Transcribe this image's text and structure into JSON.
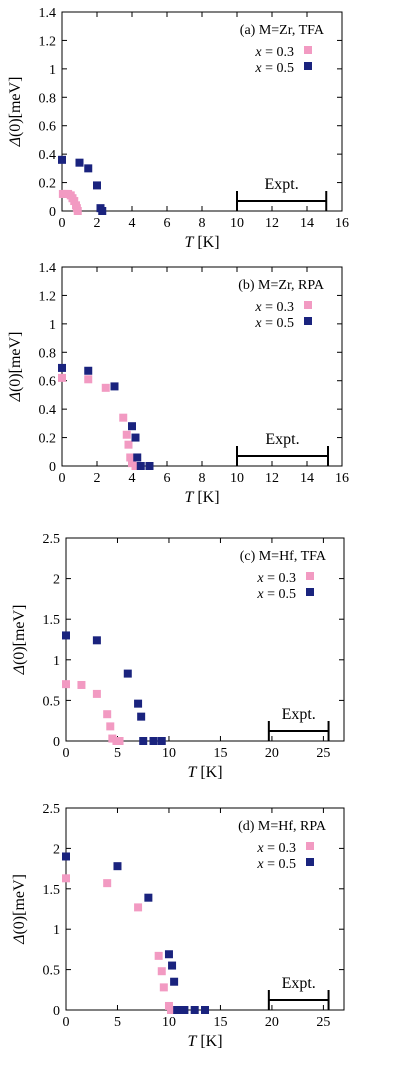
{
  "colors": {
    "x03": "#f29ac2",
    "x05": "#1a237e"
  },
  "chart_data": [
    {
      "type": "scatter",
      "title": "(a) M=Zr, TFA",
      "xlabel": "T [K]",
      "ylabel": "Δ(0)[meV]",
      "xlim": [
        0,
        16
      ],
      "ylim": [
        0,
        1.4
      ],
      "xticks": [
        0,
        2,
        4,
        6,
        8,
        10,
        12,
        14,
        16
      ],
      "yticks": [
        0,
        0.2,
        0.4,
        0.6,
        0.8,
        1,
        1.2,
        1.4
      ],
      "xtick_labels": [
        "0",
        "2",
        "4",
        "6",
        "8",
        "10",
        "12",
        "14",
        "16"
      ],
      "ytick_labels": [
        "0",
        "0.2",
        "0.4",
        "0.6",
        "0.8",
        "1",
        "1.2",
        "1.4"
      ],
      "legend_position": "top-right",
      "expt": {
        "label": "Expt.",
        "range": [
          10,
          15.1
        ]
      },
      "series": [
        {
          "name": "x = 0.3",
          "color": "#f29ac2",
          "points": [
            [
              0.05,
              0.12
            ],
            [
              0.2,
              0.12
            ],
            [
              0.35,
              0.12
            ],
            [
              0.5,
              0.11
            ],
            [
              0.6,
              0.09
            ],
            [
              0.7,
              0.07
            ],
            [
              0.8,
              0.04
            ],
            [
              0.85,
              0.02
            ],
            [
              0.9,
              0.0
            ]
          ]
        },
        {
          "name": "x = 0.5",
          "color": "#1a237e",
          "points": [
            [
              0,
              0.36
            ],
            [
              1,
              0.34
            ],
            [
              1.5,
              0.3
            ],
            [
              2,
              0.18
            ],
            [
              2.2,
              0.02
            ],
            [
              2.3,
              0.0
            ]
          ]
        }
      ]
    },
    {
      "type": "scatter",
      "title": "(b) M=Zr, RPA",
      "xlabel": "T [K]",
      "ylabel": "Δ(0)[meV]",
      "xlim": [
        0,
        16
      ],
      "ylim": [
        0,
        1.4
      ],
      "xticks": [
        0,
        2,
        4,
        6,
        8,
        10,
        12,
        14,
        16
      ],
      "yticks": [
        0,
        0.2,
        0.4,
        0.6,
        0.8,
        1,
        1.2,
        1.4
      ],
      "xtick_labels": [
        "0",
        "2",
        "4",
        "6",
        "8",
        "10",
        "12",
        "14",
        "16"
      ],
      "ytick_labels": [
        "0",
        "0.2",
        "0.4",
        "0.6",
        "0.8",
        "1",
        "1.2",
        "1.4"
      ],
      "legend_position": "top-right",
      "expt": {
        "label": "Expt.",
        "range": [
          10,
          15.2
        ]
      },
      "series": [
        {
          "name": "x = 0.3",
          "color": "#f29ac2",
          "points": [
            [
              0,
              0.62
            ],
            [
              1.5,
              0.61
            ],
            [
              2.5,
              0.55
            ],
            [
              3.5,
              0.34
            ],
            [
              3.7,
              0.22
            ],
            [
              3.8,
              0.15
            ],
            [
              3.9,
              0.06
            ],
            [
              4.0,
              0.02
            ],
            [
              4.2,
              0.0
            ]
          ]
        },
        {
          "name": "x = 0.5",
          "color": "#1a237e",
          "points": [
            [
              0,
              0.69
            ],
            [
              1.5,
              0.67
            ],
            [
              3,
              0.56
            ],
            [
              4,
              0.28
            ],
            [
              4.2,
              0.2
            ],
            [
              4.3,
              0.06
            ],
            [
              4.5,
              0.0
            ],
            [
              5,
              0.0
            ]
          ]
        }
      ]
    },
    {
      "type": "scatter",
      "title": "(c) M=Hf, TFA",
      "xlabel": "T [K]",
      "ylabel": "Δ(0)[meV]",
      "xlim": [
        0,
        27
      ],
      "ylim": [
        0,
        2.5
      ],
      "xticks": [
        0,
        5,
        10,
        15,
        20,
        25
      ],
      "yticks": [
        0,
        0.5,
        1,
        1.5,
        2,
        2.5
      ],
      "xtick_labels": [
        "0",
        "5",
        "10",
        "15",
        "20",
        "25"
      ],
      "ytick_labels": [
        "0",
        "0.5",
        "1",
        "1.5",
        "2",
        "2.5"
      ],
      "legend_position": "top-right",
      "expt": {
        "label": "Expt.",
        "range": [
          19.7,
          25.5
        ]
      },
      "series": [
        {
          "name": "x = 0.3",
          "color": "#f29ac2",
          "points": [
            [
              0,
              0.7
            ],
            [
              1.5,
              0.69
            ],
            [
              3,
              0.58
            ],
            [
              4,
              0.33
            ],
            [
              4.3,
              0.18
            ],
            [
              4.5,
              0.03
            ],
            [
              4.9,
              0.0
            ],
            [
              5.2,
              0.0
            ]
          ]
        },
        {
          "name": "x = 0.5",
          "color": "#1a237e",
          "points": [
            [
              0,
              1.3
            ],
            [
              3,
              1.24
            ],
            [
              6,
              0.83
            ],
            [
              7,
              0.46
            ],
            [
              7.3,
              0.3
            ],
            [
              7.5,
              0.0
            ],
            [
              8.5,
              0.0
            ],
            [
              9.3,
              0.0
            ]
          ]
        }
      ]
    },
    {
      "type": "scatter",
      "title": "(d) M=Hf, RPA",
      "xlabel": "T [K]",
      "ylabel": "Δ(0)[meV]",
      "xlim": [
        0,
        27
      ],
      "ylim": [
        0,
        2.5
      ],
      "xticks": [
        0,
        5,
        10,
        15,
        20,
        25
      ],
      "yticks": [
        0,
        0.5,
        1,
        1.5,
        2,
        2.5
      ],
      "xtick_labels": [
        "0",
        "5",
        "10",
        "15",
        "20",
        "25"
      ],
      "ytick_labels": [
        "0",
        "0.5",
        "1",
        "1.5",
        "2",
        "2.5"
      ],
      "legend_position": "top-right",
      "expt": {
        "label": "Expt.",
        "range": [
          19.7,
          25.5
        ]
      },
      "series": [
        {
          "name": "x = 0.3",
          "color": "#f29ac2",
          "points": [
            [
              0,
              1.63
            ],
            [
              4,
              1.57
            ],
            [
              7,
              1.27
            ],
            [
              9,
              0.67
            ],
            [
              9.3,
              0.48
            ],
            [
              9.5,
              0.28
            ],
            [
              10,
              0.05
            ],
            [
              10.2,
              0.0
            ]
          ]
        },
        {
          "name": "x = 0.5",
          "color": "#1a237e",
          "points": [
            [
              0,
              1.9
            ],
            [
              5,
              1.78
            ],
            [
              8,
              1.39
            ],
            [
              10,
              0.69
            ],
            [
              10.3,
              0.55
            ],
            [
              10.5,
              0.35
            ],
            [
              10.8,
              0.0
            ],
            [
              11.5,
              0.0
            ],
            [
              12.5,
              0.0
            ],
            [
              13.5,
              0.0
            ]
          ]
        }
      ]
    }
  ]
}
